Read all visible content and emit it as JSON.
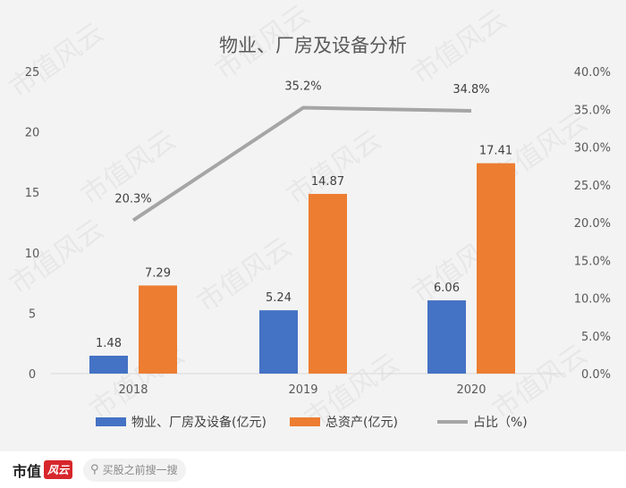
{
  "chart_data": {
    "type": "bar",
    "title": "物业、厂房及设备分析",
    "categories": [
      "2018",
      "2019",
      "2020"
    ],
    "series": [
      {
        "name": "物业、厂房及设备(亿元)",
        "type": "bar",
        "axis": "left",
        "color": "#4472c4",
        "values": [
          1.48,
          5.24,
          6.06
        ],
        "labels": [
          "1.48",
          "5.24",
          "6.06"
        ]
      },
      {
        "name": "总资产(亿元)",
        "type": "bar",
        "axis": "left",
        "color": "#ed7d31",
        "values": [
          7.29,
          14.87,
          17.41
        ],
        "labels": [
          "7.29",
          "14.87",
          "17.41"
        ]
      },
      {
        "name": "占比（%)",
        "type": "line",
        "axis": "right",
        "color": "#a5a5a5",
        "values": [
          20.3,
          35.2,
          34.8
        ],
        "labels": [
          "20.3%",
          "35.2%",
          "34.8%"
        ]
      }
    ],
    "y_left": {
      "min": 0,
      "max": 25,
      "ticks": [
        "0",
        "5",
        "10",
        "15",
        "20",
        "25"
      ]
    },
    "y_right": {
      "min": 0,
      "max": 40,
      "ticks": [
        "0.0%",
        "5.0%",
        "10.0%",
        "15.0%",
        "20.0%",
        "25.0%",
        "30.0%",
        "35.0%",
        "40.0%"
      ]
    },
    "grid": false,
    "legend_position": "bottom"
  },
  "watermark": {
    "text": "市值风云"
  },
  "footer": {
    "brand_main": "市值",
    "brand_tag": "风云",
    "search_placeholder": "买股之前搜一搜"
  }
}
